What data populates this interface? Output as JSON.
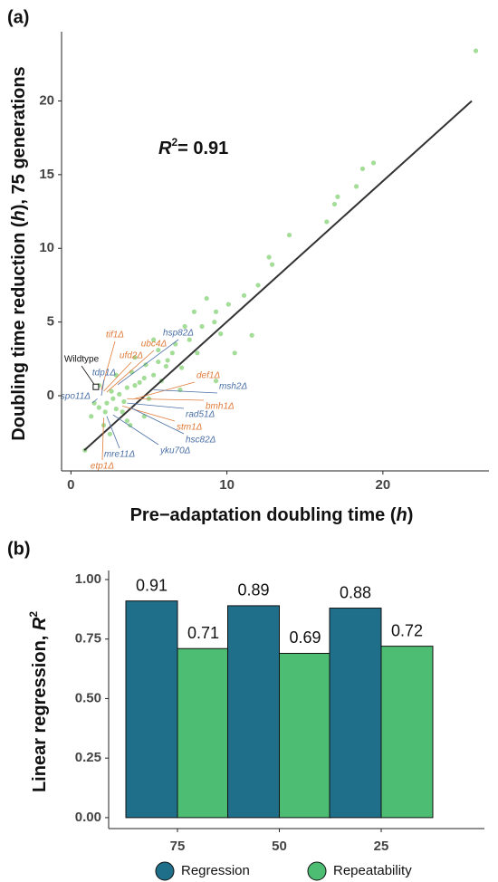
{
  "chart_data": [
    {
      "type": "scatter",
      "panel_label": "(a)",
      "annotation": {
        "base": "R",
        "sup": "2",
        "rest": "= 0.91"
      },
      "x_label": [
        "Pre−adaptation doubling time (",
        "h",
        ")"
      ],
      "y_label": [
        "Doubling time reduction (",
        "h",
        "), 75 generations"
      ],
      "xlim": [
        -0.6,
        26.8
      ],
      "xticks": [
        0,
        10,
        20
      ],
      "ylim": [
        -5.1,
        24.7
      ],
      "yticks": [
        0,
        5,
        10,
        15,
        20
      ],
      "series": [
        {
          "color": "#7ccf6b",
          "x": [
            25.96,
            19.4,
            18.7,
            18.3,
            17.1,
            16.9,
            16.4,
            14,
            12.9,
            12.7,
            12,
            11.1,
            10.1,
            9.3,
            9.2,
            8.4,
            9.6,
            7.6,
            7.3,
            8.1,
            6.5,
            6.1,
            5.6,
            5.3,
            4.7,
            4.1,
            3.6,
            3.1,
            2.7,
            2.3,
            1.8,
            1.3,
            0.9,
            2.1,
            2.5,
            3.8,
            4.7,
            7,
            9.3,
            10.5,
            11.6,
            8.7,
            7.9,
            6.7,
            5.8,
            5,
            3.3,
            2.9,
            4.1,
            5.3,
            1.8,
            1.5,
            3.6,
            2.6,
            3.4,
            4.4,
            3.9,
            2.2,
            2.9,
            4.8,
            6.2,
            7.1,
            5.6
          ],
          "y": [
            23.4,
            15.8,
            15.4,
            14.2,
            13.5,
            13,
            11.8,
            10.9,
            8.9,
            9.4,
            7.5,
            6.8,
            6.2,
            5.7,
            5,
            4.7,
            4.2,
            3.8,
            4.7,
            2.9,
            2.9,
            2,
            2.3,
            1.4,
            1.2,
            0.7,
            0.55,
            0.1,
            -0.2,
            -0.5,
            -0.8,
            -1.4,
            -3.7,
            -2,
            -2.6,
            -2,
            -1.4,
            0.4,
            1,
            2.9,
            4.1,
            6.6,
            5.7,
            3.5,
            1,
            -0.2,
            -1.1,
            1.4,
            2.6,
            3.8,
            0.7,
            -0.5,
            -1.7,
            0.3,
            -0.4,
            0.9,
            1.6,
            -1.1,
            -0.9,
            2.1,
            2.4,
            1.9,
            3.1
          ]
        }
      ],
      "fit": {
        "color": "#333333",
        "x": [
          0.86,
          25.7
        ],
        "y": [
          -3.7,
          20
        ]
      },
      "genes": [
        {
          "label": "tif1Δ",
          "color": "#e07b39",
          "x": 1.95,
          "y": 0.4
        },
        {
          "label": "ufd2Δ",
          "color": "#e07b39",
          "x": 2.1,
          "y": 0.3
        },
        {
          "label": "ubc4Δ",
          "color": "#e07b39",
          "x": 2.3,
          "y": 0.25
        },
        {
          "label": "hsp82Δ",
          "color": "#4a6fa5",
          "x": 3.0,
          "y": 0.75
        },
        {
          "label": "Wildtype",
          "color": "#111111",
          "x": 1.6,
          "y": 0.6,
          "marker": "square"
        },
        {
          "label": "tdp1Δ",
          "color": "#4a6fa5",
          "x": 1.95,
          "y": 0
        },
        {
          "label": "def1Δ",
          "color": "#e07b39",
          "x": 4.1,
          "y": -0.2
        },
        {
          "label": "msh2Δ",
          "color": "#4a6fa5",
          "x": 5.3,
          "y": 0.4
        },
        {
          "label": "bmh1Δ",
          "color": "#e07b39",
          "x": 3.6,
          "y": -0.2
        },
        {
          "label": "rad51Δ",
          "color": "#4a6fa5",
          "x": 3.6,
          "y": -0.5
        },
        {
          "label": "stm1Δ",
          "color": "#e07b39",
          "x": 3.3,
          "y": -0.7
        },
        {
          "label": "spo11Δ",
          "color": "#4a6fa5",
          "x": 1.7,
          "y": -0.2
        },
        {
          "label": "hsc82Δ",
          "color": "#4a6fa5",
          "x": 3.8,
          "y": -0.8
        },
        {
          "label": "yku70Δ",
          "color": "#4a6fa5",
          "x": 2.7,
          "y": -1.3
        },
        {
          "label": "mre11Δ",
          "color": "#4a6fa5",
          "x": 2.3,
          "y": -1.4
        },
        {
          "label": "etp1Δ",
          "color": "#e07b39",
          "x": 2.1,
          "y": -1.5
        }
      ]
    },
    {
      "type": "bar",
      "panel_label": "(b)",
      "y_label": [
        "Linear regression, ",
        "R",
        "2"
      ],
      "categories": [
        "75",
        "50",
        "25"
      ],
      "series": [
        {
          "name": "Regression",
          "color": "#1f6f8b",
          "values": [
            0.91,
            0.89,
            0.88
          ]
        },
        {
          "name": "Repeatability",
          "color": "#4dbd74",
          "values": [
            0.71,
            0.69,
            0.72
          ]
        }
      ],
      "ylim": [
        -0.046,
        1.038
      ],
      "yticks": [
        {
          "value": 0,
          "label": "0.00"
        },
        {
          "value": 0.25,
          "label": "0.25"
        },
        {
          "value": 0.5,
          "label": "0.50"
        },
        {
          "value": 0.75,
          "label": "0.75"
        },
        {
          "value": 1,
          "label": "1.00"
        }
      ]
    }
  ]
}
